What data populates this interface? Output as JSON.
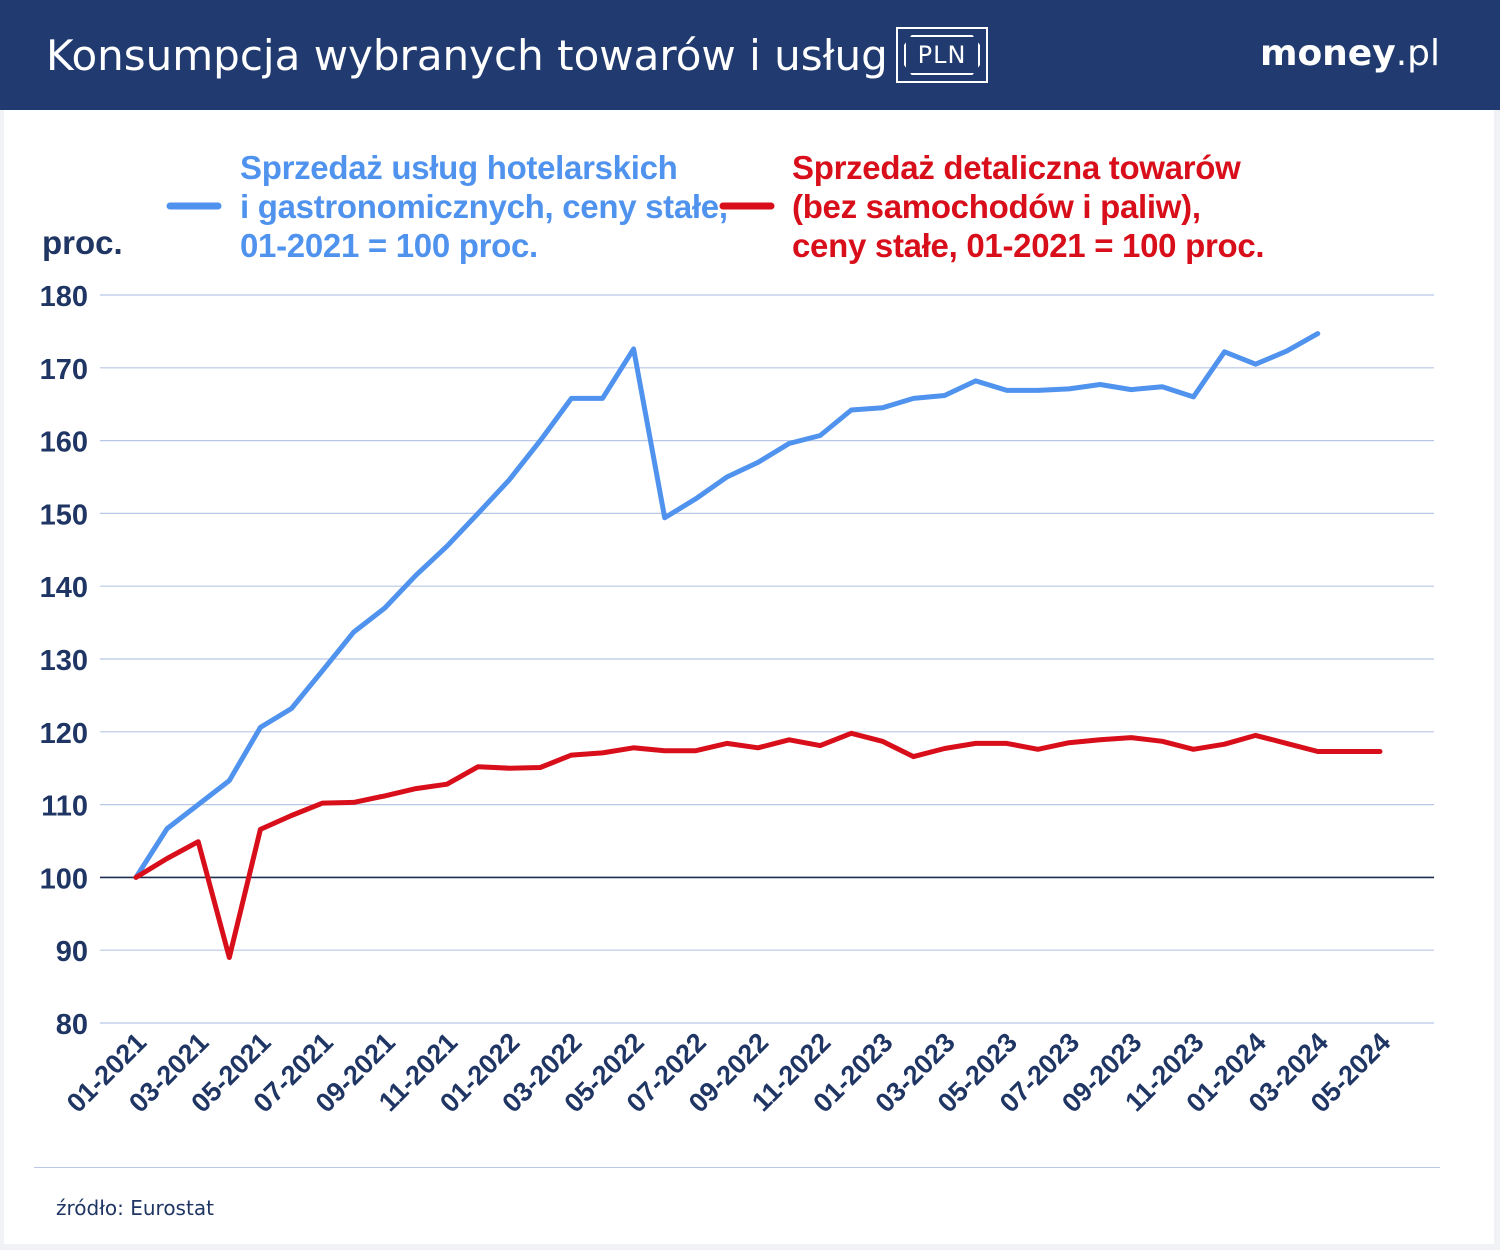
{
  "header": {
    "title": "Konsumpcja wybranych towarów i usług",
    "badge": "PLN",
    "logo_main": "money",
    "logo_suffix": ".pl"
  },
  "colors": {
    "header_bg": "#213b70",
    "blue_series": "#5093ee",
    "red_series": "#d80f1a",
    "axis_text": "#1f3563",
    "grid": "#b8c7e6"
  },
  "chart_data": {
    "type": "line",
    "ylabel": "proc.",
    "ylim": [
      80,
      180
    ],
    "yticks": [
      80,
      90,
      100,
      110,
      120,
      130,
      140,
      150,
      160,
      170,
      180
    ],
    "baseline": 100,
    "x_tick_labels": [
      "01-2021",
      "03-2021",
      "05-2021",
      "07-2021",
      "09-2021",
      "11-2021",
      "01-2022",
      "03-2022",
      "05-2022",
      "07-2022",
      "09-2022",
      "11-2022",
      "01-2023",
      "03-2023",
      "05-2023",
      "07-2023",
      "09-2023",
      "11-2023",
      "01-2024",
      "03-2024",
      "05-2024"
    ],
    "x_months": [
      "01-2021",
      "02-2021",
      "03-2021",
      "04-2021",
      "05-2021",
      "06-2021",
      "07-2021",
      "08-2021",
      "09-2021",
      "10-2021",
      "11-2021",
      "12-2021",
      "01-2022",
      "02-2022",
      "03-2022",
      "04-2022",
      "05-2022",
      "06-2022",
      "07-2022",
      "08-2022",
      "09-2022",
      "10-2022",
      "11-2022",
      "12-2022",
      "01-2023",
      "02-2023",
      "03-2023",
      "04-2023",
      "05-2023",
      "06-2023",
      "07-2023",
      "08-2023",
      "09-2023",
      "10-2023",
      "11-2023",
      "12-2023",
      "01-2024",
      "02-2024",
      "03-2024",
      "04-2024",
      "05-2024"
    ],
    "series": [
      {
        "name_lines": [
          "Sprzedaż usług hotelarskich",
          "i gastronomicznych, ceny stałe,",
          "01-2021 = 100 proc."
        ],
        "color": "#5093ee",
        "values": [
          100,
          106.7,
          110,
          113.3,
          120.6,
          123.2,
          128.4,
          133.7,
          137,
          141.5,
          145.5,
          150,
          154.6,
          160,
          165.8,
          165.8,
          172.6,
          149.4,
          152,
          155,
          157,
          159.6,
          160.7,
          164.2,
          164.5,
          165.8,
          166.2,
          168.2,
          166.9,
          166.9,
          167.1,
          167.7,
          167,
          167.4,
          166,
          172.2,
          170.5,
          172.3,
          174.7
        ]
      },
      {
        "name_lines": [
          "Sprzedaż detaliczna towarów",
          "(bez samochodów i paliw),",
          "ceny stałe, 01-2021 = 100 proc."
        ],
        "color": "#d80f1a",
        "values": [
          100,
          102.6,
          104.9,
          89,
          106.6,
          108.5,
          110.2,
          110.3,
          111.2,
          112.2,
          112.8,
          115.2,
          115,
          115.1,
          116.8,
          117.1,
          117.8,
          117.4,
          117.4,
          118.4,
          117.8,
          118.9,
          118.1,
          119.8,
          118.7,
          116.6,
          117.7,
          118.4,
          118.4,
          117.6,
          118.5,
          118.9,
          119.2,
          118.7,
          117.6,
          118.3,
          119.5,
          118.4,
          117.3,
          117.3,
          117.3
        ]
      }
    ]
  },
  "source": "źródło: Eurostat"
}
